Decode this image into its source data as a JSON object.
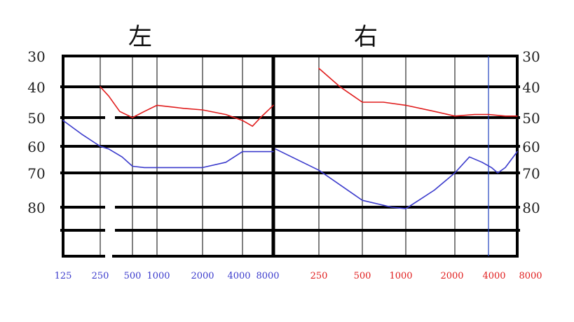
{
  "chart_data": [
    {
      "type": "line",
      "title": "左",
      "xlabel": "",
      "ylabel": "",
      "x_tick_labels": [
        "125",
        "250",
        "500",
        "1000",
        "2000",
        "4000",
        "8000"
      ],
      "ylim": [
        30,
        90
      ],
      "y_tick_labels": [
        "30",
        "40",
        "50",
        "60",
        "70",
        "80"
      ],
      "grid": true,
      "series": [
        {
          "color": "#e01c1c",
          "x": [
            250,
            300,
            380,
            500,
            700,
            1000,
            1500,
            2000,
            3000,
            4000,
            5000,
            6000,
            8000
          ],
          "y": [
            40,
            43,
            48,
            50,
            48,
            46,
            47,
            47.5,
            49,
            51,
            53,
            50,
            46
          ]
        },
        {
          "color": "#3a3acc",
          "x": [
            125,
            180,
            250,
            300,
            400,
            500,
            700,
            1000,
            1500,
            2000,
            3000,
            4000,
            6000,
            8000
          ],
          "y": [
            51,
            56,
            60,
            61,
            64,
            67.5,
            68,
            68,
            68,
            68,
            66,
            62,
            62,
            62
          ]
        }
      ]
    },
    {
      "type": "line",
      "title": "右",
      "xlabel": "",
      "ylabel": "",
      "x_tick_labels": [
        "250",
        "500",
        "1000",
        "2000",
        "4000",
        "8000"
      ],
      "ylim": [
        30,
        90
      ],
      "y_tick_labels": [
        "30",
        "40",
        "50",
        "60",
        "70",
        "80"
      ],
      "grid": true,
      "series": [
        {
          "color": "#e01c1c",
          "x": [
            250,
            350,
            500,
            700,
            1000,
            1500,
            2000,
            3000,
            4000,
            6000,
            8000
          ],
          "y": [
            34,
            40,
            45,
            45,
            46,
            48,
            49.5,
            49,
            49,
            49.5,
            49.5
          ]
        },
        {
          "color": "#3a3acc",
          "x": [
            125,
            250,
            500,
            800,
            1000,
            1200,
            1500,
            2000,
            2700,
            3500,
            4300,
            5000,
            6000,
            8000
          ],
          "y": [
            61,
            69,
            78,
            80,
            80.5,
            78,
            75,
            70,
            64,
            66,
            68,
            70,
            68,
            62
          ]
        }
      ]
    }
  ],
  "marker_line_color": "#1f3fbf"
}
